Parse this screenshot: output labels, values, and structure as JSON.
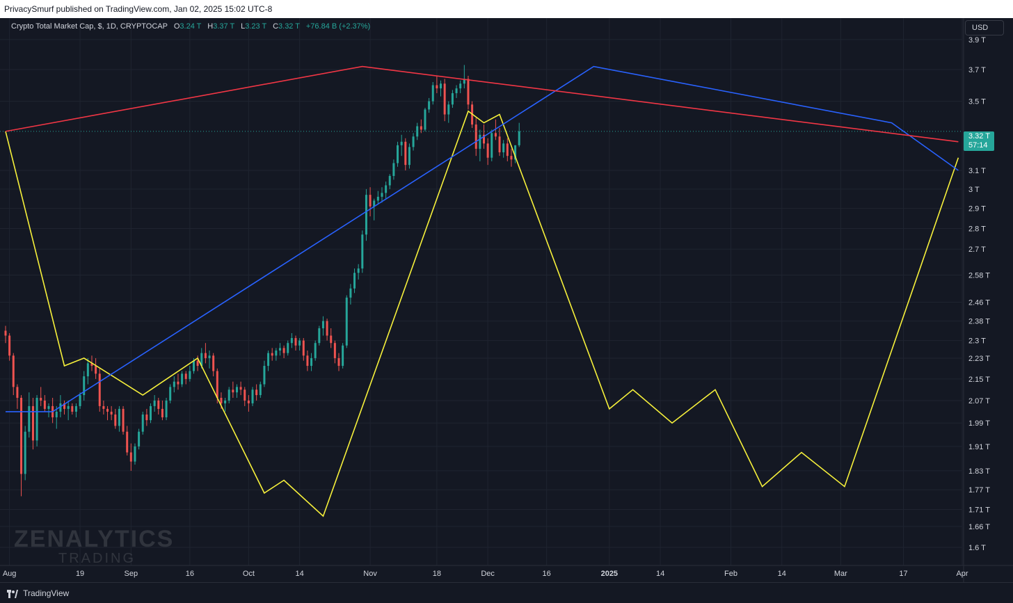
{
  "header": {
    "published_by": "PrivacySmurf published on TradingView.com, Jan 02, 2025 15:02 UTC-8"
  },
  "legend": {
    "symbol": "Crypto Total Market Cap, $, 1D, CRYPTOCAP",
    "open_label": "O",
    "open": "3.24 T",
    "high_label": "H",
    "high": "3.37 T",
    "low_label": "L",
    "low": "3.23 T",
    "close_label": "C",
    "close": "3.32 T",
    "change": "+76.84 B (+2.37%)"
  },
  "currency_button": "USD",
  "price_badge": {
    "price": "3.32 T",
    "countdown": "57:14"
  },
  "watermark": {
    "line1": "ZENALYTICS",
    "line2": "TRADING"
  },
  "footer": {
    "brand": "TradingView"
  },
  "colors": {
    "background": "#141823",
    "grid": "#1f2430",
    "up": "#26a69a",
    "down": "#ef5350",
    "yellow_line": "#f7f13b",
    "blue_line": "#2962ff",
    "red_line": "#f23645",
    "text": "#d1d4dc"
  },
  "chart_data": {
    "type": "candlestick",
    "title": "Crypto Total Market Cap, $, 1D, CRYPTOCAP",
    "y_scale": "log",
    "ylim": [
      1.55,
      4.05
    ],
    "y_unit": "T",
    "y_ticks": [
      {
        "value": 3.9,
        "label": "3.9 T"
      },
      {
        "value": 3.7,
        "label": "3.7 T"
      },
      {
        "value": 3.5,
        "label": "3.5 T"
      },
      {
        "value": 3.1,
        "label": "3.1 T"
      },
      {
        "value": 3.0,
        "label": "3 T"
      },
      {
        "value": 2.9,
        "label": "2.9 T"
      },
      {
        "value": 2.8,
        "label": "2.8 T"
      },
      {
        "value": 2.7,
        "label": "2.7 T"
      },
      {
        "value": 2.58,
        "label": "2.58 T"
      },
      {
        "value": 2.46,
        "label": "2.46 T"
      },
      {
        "value": 2.38,
        "label": "2.38 T"
      },
      {
        "value": 2.3,
        "label": "2.3 T"
      },
      {
        "value": 2.23,
        "label": "2.23 T"
      },
      {
        "value": 2.15,
        "label": "2.15 T"
      },
      {
        "value": 2.07,
        "label": "2.07 T"
      },
      {
        "value": 1.99,
        "label": "1.99 T"
      },
      {
        "value": 1.91,
        "label": "1.91 T"
      },
      {
        "value": 1.83,
        "label": "1.83 T"
      },
      {
        "value": 1.77,
        "label": "1.77 T"
      },
      {
        "value": 1.71,
        "label": "1.71 T"
      },
      {
        "value": 1.66,
        "label": "1.66 T"
      },
      {
        "value": 1.6,
        "label": "1.6 T"
      }
    ],
    "x_start": "2024-07-31",
    "x_end": "2025-04-01",
    "x_ticks": [
      {
        "date": "2024-08-01",
        "label": "Aug"
      },
      {
        "date": "2024-08-19",
        "label": "19"
      },
      {
        "date": "2024-09-01",
        "label": "Sep"
      },
      {
        "date": "2024-09-16",
        "label": "16"
      },
      {
        "date": "2024-10-01",
        "label": "Oct"
      },
      {
        "date": "2024-10-14",
        "label": "14"
      },
      {
        "date": "2024-11-01",
        "label": "Nov"
      },
      {
        "date": "2024-11-18",
        "label": "18"
      },
      {
        "date": "2024-12-01",
        "label": "Dec"
      },
      {
        "date": "2024-12-16",
        "label": "16"
      },
      {
        "date": "2025-01-01",
        "label": "2025"
      },
      {
        "date": "2025-01-14",
        "label": "14"
      },
      {
        "date": "2025-02-01",
        "label": "Feb"
      },
      {
        "date": "2025-02-14",
        "label": "14"
      },
      {
        "date": "2025-03-01",
        "label": "Mar"
      },
      {
        "date": "2025-03-17",
        "label": "17"
      },
      {
        "date": "2025-04-01",
        "label": "Apr"
      }
    ],
    "last_price": 3.32,
    "candles_start": "2024-07-31",
    "candles_ohlc": [
      [
        2.34,
        2.36,
        2.29,
        2.32
      ],
      [
        2.32,
        2.33,
        2.22,
        2.24
      ],
      [
        2.24,
        2.25,
        2.09,
        2.12
      ],
      [
        2.12,
        2.13,
        2.04,
        2.08
      ],
      [
        2.08,
        2.09,
        1.75,
        1.82
      ],
      [
        1.82,
        1.98,
        1.8,
        1.96
      ],
      [
        1.96,
        2.1,
        1.94,
        2.05
      ],
      [
        2.05,
        2.08,
        1.9,
        1.93
      ],
      [
        1.93,
        2.09,
        1.91,
        2.08
      ],
      [
        2.08,
        2.12,
        2.05,
        2.07
      ],
      [
        2.07,
        2.09,
        2.03,
        2.04
      ],
      [
        2.04,
        2.06,
        2.01,
        2.05
      ],
      [
        2.05,
        2.08,
        1.99,
        2.01
      ],
      [
        2.01,
        2.05,
        1.97,
        2.03
      ],
      [
        2.03,
        2.09,
        2.01,
        2.06
      ],
      [
        2.06,
        2.07,
        2.02,
        2.04
      ],
      [
        2.04,
        2.07,
        2.0,
        2.05
      ],
      [
        2.05,
        2.06,
        2.02,
        2.03
      ],
      [
        2.03,
        2.06,
        2.01,
        2.05
      ],
      [
        2.05,
        2.1,
        2.04,
        2.09
      ],
      [
        2.09,
        2.18,
        2.07,
        2.16
      ],
      [
        2.16,
        2.23,
        2.13,
        2.21
      ],
      [
        2.21,
        2.24,
        2.18,
        2.2
      ],
      [
        2.2,
        2.23,
        2.15,
        2.17
      ],
      [
        2.17,
        2.19,
        2.03,
        2.05
      ],
      [
        2.05,
        2.07,
        2.02,
        2.04
      ],
      [
        2.04,
        2.05,
        2.0,
        2.03
      ],
      [
        2.03,
        2.05,
        2.0,
        2.02
      ],
      [
        2.02,
        2.04,
        1.97,
        1.98
      ],
      [
        1.98,
        2.05,
        1.96,
        2.04
      ],
      [
        2.04,
        2.05,
        1.95,
        1.96
      ],
      [
        1.96,
        1.98,
        1.88,
        1.89
      ],
      [
        1.89,
        1.92,
        1.83,
        1.86
      ],
      [
        1.86,
        1.92,
        1.85,
        1.91
      ],
      [
        1.91,
        1.97,
        1.9,
        1.96
      ],
      [
        1.96,
        2.03,
        1.95,
        2.02
      ],
      [
        2.02,
        2.04,
        1.98,
        2.0
      ],
      [
        2.0,
        2.06,
        1.99,
        2.05
      ],
      [
        2.05,
        2.09,
        2.03,
        2.07
      ],
      [
        2.07,
        2.08,
        2.02,
        2.04
      ],
      [
        2.04,
        2.07,
        2.0,
        2.01
      ],
      [
        2.01,
        2.08,
        2.0,
        2.07
      ],
      [
        2.07,
        2.13,
        2.06,
        2.12
      ],
      [
        2.12,
        2.16,
        2.1,
        2.14
      ],
      [
        2.14,
        2.17,
        2.11,
        2.13
      ],
      [
        2.13,
        2.18,
        2.12,
        2.17
      ],
      [
        2.17,
        2.18,
        2.13,
        2.15
      ],
      [
        2.15,
        2.2,
        2.14,
        2.18
      ],
      [
        2.18,
        2.23,
        2.17,
        2.22
      ],
      [
        2.22,
        2.24,
        2.18,
        2.2
      ],
      [
        2.2,
        2.27,
        2.19,
        2.25
      ],
      [
        2.25,
        2.29,
        2.21,
        2.23
      ],
      [
        2.23,
        2.26,
        2.19,
        2.24
      ],
      [
        2.24,
        2.25,
        2.16,
        2.18
      ],
      [
        2.18,
        2.19,
        2.06,
        2.08
      ],
      [
        2.08,
        2.1,
        2.04,
        2.06
      ],
      [
        2.06,
        2.08,
        2.03,
        2.07
      ],
      [
        2.07,
        2.12,
        2.06,
        2.11
      ],
      [
        2.11,
        2.14,
        2.08,
        2.1
      ],
      [
        2.1,
        2.13,
        2.08,
        2.12
      ],
      [
        2.12,
        2.14,
        2.09,
        2.11
      ],
      [
        2.11,
        2.12,
        2.05,
        2.07
      ],
      [
        2.07,
        2.09,
        2.03,
        2.06
      ],
      [
        2.06,
        2.12,
        2.05,
        2.11
      ],
      [
        2.11,
        2.13,
        2.07,
        2.09
      ],
      [
        2.09,
        2.14,
        2.08,
        2.13
      ],
      [
        2.13,
        2.22,
        2.12,
        2.2
      ],
      [
        2.2,
        2.26,
        2.18,
        2.25
      ],
      [
        2.25,
        2.27,
        2.22,
        2.24
      ],
      [
        2.24,
        2.27,
        2.22,
        2.26
      ],
      [
        2.26,
        2.29,
        2.24,
        2.27
      ],
      [
        2.27,
        2.28,
        2.23,
        2.25
      ],
      [
        2.25,
        2.3,
        2.24,
        2.29
      ],
      [
        2.29,
        2.33,
        2.27,
        2.31
      ],
      [
        2.31,
        2.32,
        2.26,
        2.28
      ],
      [
        2.28,
        2.31,
        2.26,
        2.3
      ],
      [
        2.3,
        2.31,
        2.22,
        2.24
      ],
      [
        2.24,
        2.26,
        2.18,
        2.2
      ],
      [
        2.2,
        2.25,
        2.18,
        2.23
      ],
      [
        2.23,
        2.3,
        2.22,
        2.29
      ],
      [
        2.29,
        2.36,
        2.28,
        2.35
      ],
      [
        2.35,
        2.4,
        2.32,
        2.38
      ],
      [
        2.38,
        2.39,
        2.3,
        2.32
      ],
      [
        2.32,
        2.35,
        2.27,
        2.29
      ],
      [
        2.29,
        2.3,
        2.21,
        2.23
      ],
      [
        2.23,
        2.25,
        2.18,
        2.2
      ],
      [
        2.2,
        2.29,
        2.19,
        2.28
      ],
      [
        2.28,
        2.49,
        2.27,
        2.48
      ],
      [
        2.48,
        2.54,
        2.45,
        2.52
      ],
      [
        2.52,
        2.61,
        2.5,
        2.59
      ],
      [
        2.59,
        2.63,
        2.56,
        2.61
      ],
      [
        2.61,
        2.79,
        2.59,
        2.77
      ],
      [
        2.77,
        3.0,
        2.74,
        2.97
      ],
      [
        2.97,
        3.01,
        2.86,
        2.91
      ],
      [
        2.91,
        2.95,
        2.84,
        2.94
      ],
      [
        2.94,
        2.99,
        2.92,
        2.96
      ],
      [
        2.96,
        3.01,
        2.93,
        2.98
      ],
      [
        2.98,
        3.04,
        2.95,
        3.02
      ],
      [
        3.02,
        3.08,
        3.0,
        3.07
      ],
      [
        3.07,
        3.16,
        3.05,
        3.14
      ],
      [
        3.14,
        3.26,
        3.12,
        3.24
      ],
      [
        3.24,
        3.3,
        3.18,
        3.26
      ],
      [
        3.26,
        3.28,
        3.1,
        3.13
      ],
      [
        3.13,
        3.25,
        3.11,
        3.23
      ],
      [
        3.23,
        3.31,
        3.21,
        3.29
      ],
      [
        3.29,
        3.37,
        3.27,
        3.35
      ],
      [
        3.35,
        3.39,
        3.31,
        3.33
      ],
      [
        3.33,
        3.46,
        3.32,
        3.45
      ],
      [
        3.45,
        3.52,
        3.43,
        3.5
      ],
      [
        3.5,
        3.62,
        3.48,
        3.6
      ],
      [
        3.6,
        3.66,
        3.55,
        3.58
      ],
      [
        3.58,
        3.63,
        3.53,
        3.61
      ],
      [
        3.61,
        3.64,
        3.38,
        3.42
      ],
      [
        3.42,
        3.5,
        3.37,
        3.48
      ],
      [
        3.48,
        3.57,
        3.46,
        3.55
      ],
      [
        3.55,
        3.6,
        3.52,
        3.58
      ],
      [
        3.58,
        3.63,
        3.55,
        3.61
      ],
      [
        3.61,
        3.73,
        3.58,
        3.64
      ],
      [
        3.64,
        3.66,
        3.45,
        3.48
      ],
      [
        3.48,
        3.5,
        3.34,
        3.36
      ],
      [
        3.36,
        3.4,
        3.18,
        3.22
      ],
      [
        3.22,
        3.33,
        3.15,
        3.3
      ],
      [
        3.3,
        3.36,
        3.22,
        3.25
      ],
      [
        3.25,
        3.28,
        3.13,
        3.17
      ],
      [
        3.17,
        3.33,
        3.15,
        3.31
      ],
      [
        3.31,
        3.39,
        3.27,
        3.29
      ],
      [
        3.29,
        3.34,
        3.18,
        3.2
      ],
      [
        3.2,
        3.27,
        3.17,
        3.25
      ],
      [
        3.25,
        3.28,
        3.15,
        3.18
      ],
      [
        3.18,
        3.22,
        3.12,
        3.16
      ],
      [
        3.16,
        3.24,
        3.14,
        3.24
      ],
      [
        3.24,
        3.37,
        3.23,
        3.32
      ]
    ],
    "overlays": [
      {
        "color": "yellow",
        "points": [
          [
            "2024-07-31",
            3.32
          ],
          [
            "2024-08-15",
            2.2
          ],
          [
            "2024-08-20",
            2.23
          ],
          [
            "2024-09-04",
            2.09
          ],
          [
            "2024-09-18",
            2.23
          ],
          [
            "2024-10-05",
            1.76
          ],
          [
            "2024-10-10",
            1.8
          ],
          [
            "2024-10-20",
            1.69
          ],
          [
            "2024-11-26",
            3.44
          ],
          [
            "2024-11-30",
            3.37
          ],
          [
            "2024-12-04",
            3.42
          ],
          [
            "2025-01-01",
            2.04
          ],
          [
            "2025-01-07",
            2.11
          ],
          [
            "2025-01-17",
            1.99
          ],
          [
            "2025-01-28",
            2.11
          ],
          [
            "2025-02-09",
            1.78
          ],
          [
            "2025-02-19",
            1.89
          ],
          [
            "2025-03-02",
            1.78
          ],
          [
            "2025-03-31",
            3.17
          ]
        ]
      },
      {
        "color": "blue",
        "points": [
          [
            "2024-07-31",
            2.03
          ],
          [
            "2024-08-12",
            2.03
          ],
          [
            "2024-12-28",
            3.72
          ],
          [
            "2025-03-14",
            3.37
          ],
          [
            "2025-03-31",
            3.1
          ]
        ]
      },
      {
        "color": "red",
        "points": [
          [
            "2024-07-31",
            3.32
          ],
          [
            "2024-10-30",
            3.72
          ],
          [
            "2025-03-31",
            3.26
          ]
        ]
      }
    ],
    "grid": true
  }
}
